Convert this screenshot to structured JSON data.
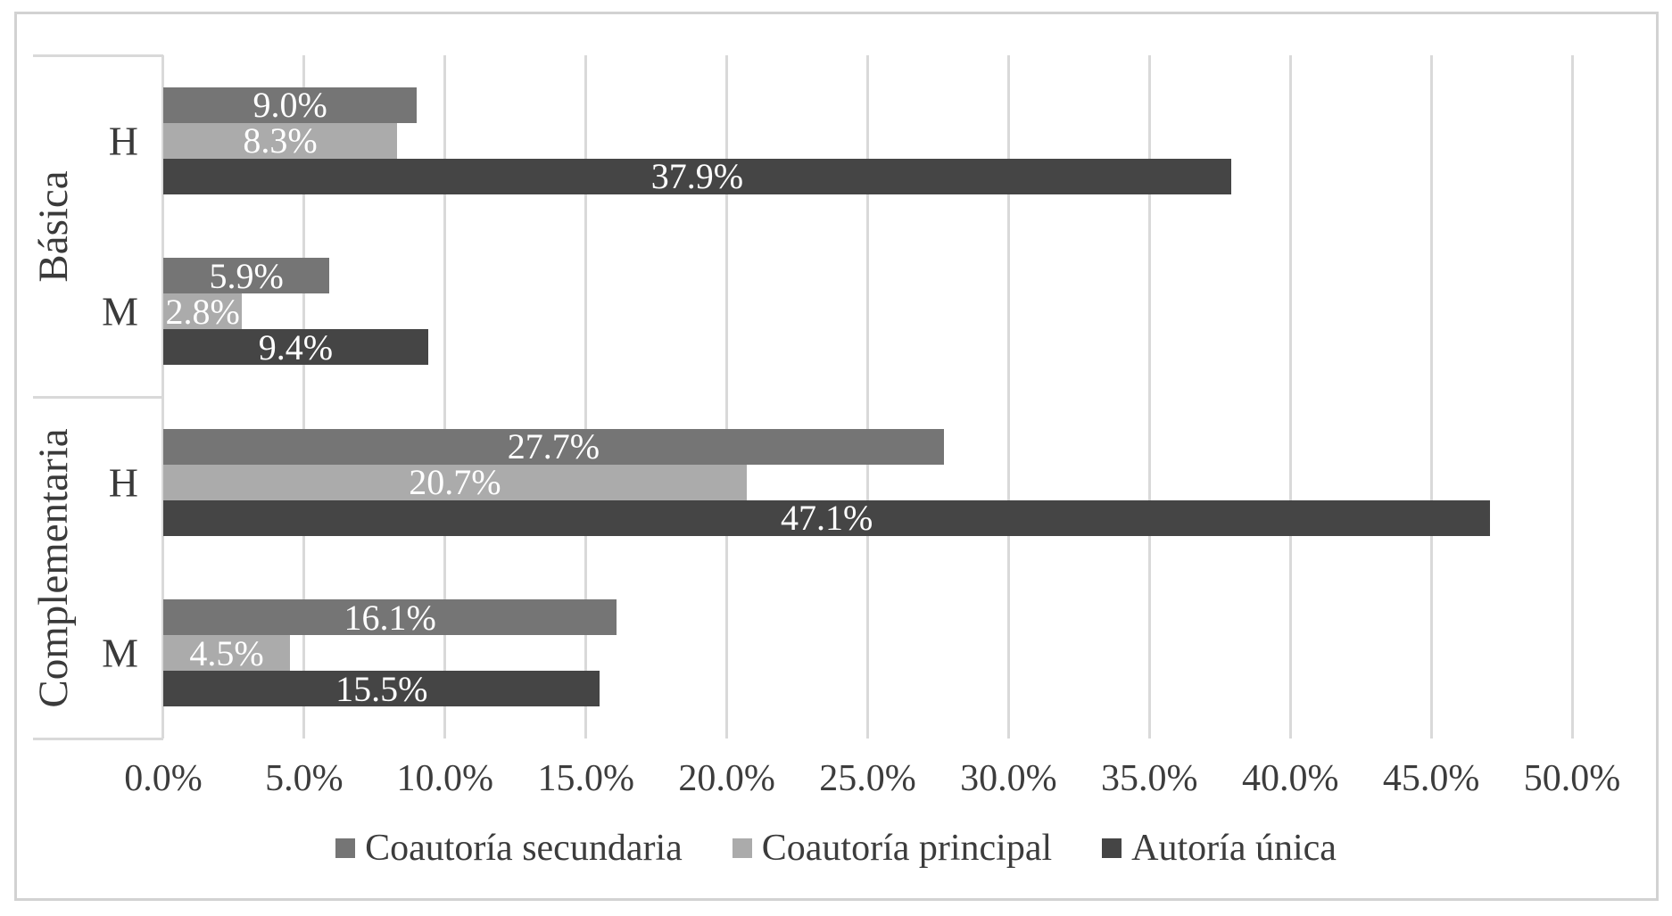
{
  "chart_data": {
    "type": "bar",
    "orientation": "horizontal",
    "title": "",
    "xlabel": "",
    "ylabel": "",
    "xlim": [
      0,
      50
    ],
    "x_tick_step": 5,
    "x_tick_labels": [
      "0.0%",
      "5.0%",
      "10.0%",
      "15.0%",
      "20.0%",
      "25.0%",
      "30.0%",
      "35.0%",
      "40.0%",
      "45.0%",
      "50.0%"
    ],
    "grid": true,
    "legend_position": "bottom",
    "groups": [
      {
        "label": "Básica",
        "categories": [
          "H",
          "M"
        ]
      },
      {
        "label": "Complementaria",
        "categories": [
          "H",
          "M"
        ]
      }
    ],
    "categories": [
      "Básica H",
      "Básica M",
      "Complementaria H",
      "Complementaria M"
    ],
    "series": [
      {
        "name": "Coautoría secundaria",
        "color": "#757575",
        "values": [
          9.0,
          5.9,
          27.7,
          16.1
        ]
      },
      {
        "name": "Coautoría principal",
        "color": "#ababab",
        "values": [
          8.3,
          2.8,
          20.7,
          4.5
        ]
      },
      {
        "name": "Autoría única",
        "color": "#454545",
        "values": [
          37.9,
          9.4,
          47.1,
          15.5
        ]
      }
    ],
    "value_label_format": "0.0%",
    "value_label_color": "#ffffff"
  },
  "colors": {
    "frame_border": "#d2d2d2",
    "gridline": "#d9d9d9",
    "axis_text": "#3c3c3c",
    "background": "#ffffff"
  }
}
